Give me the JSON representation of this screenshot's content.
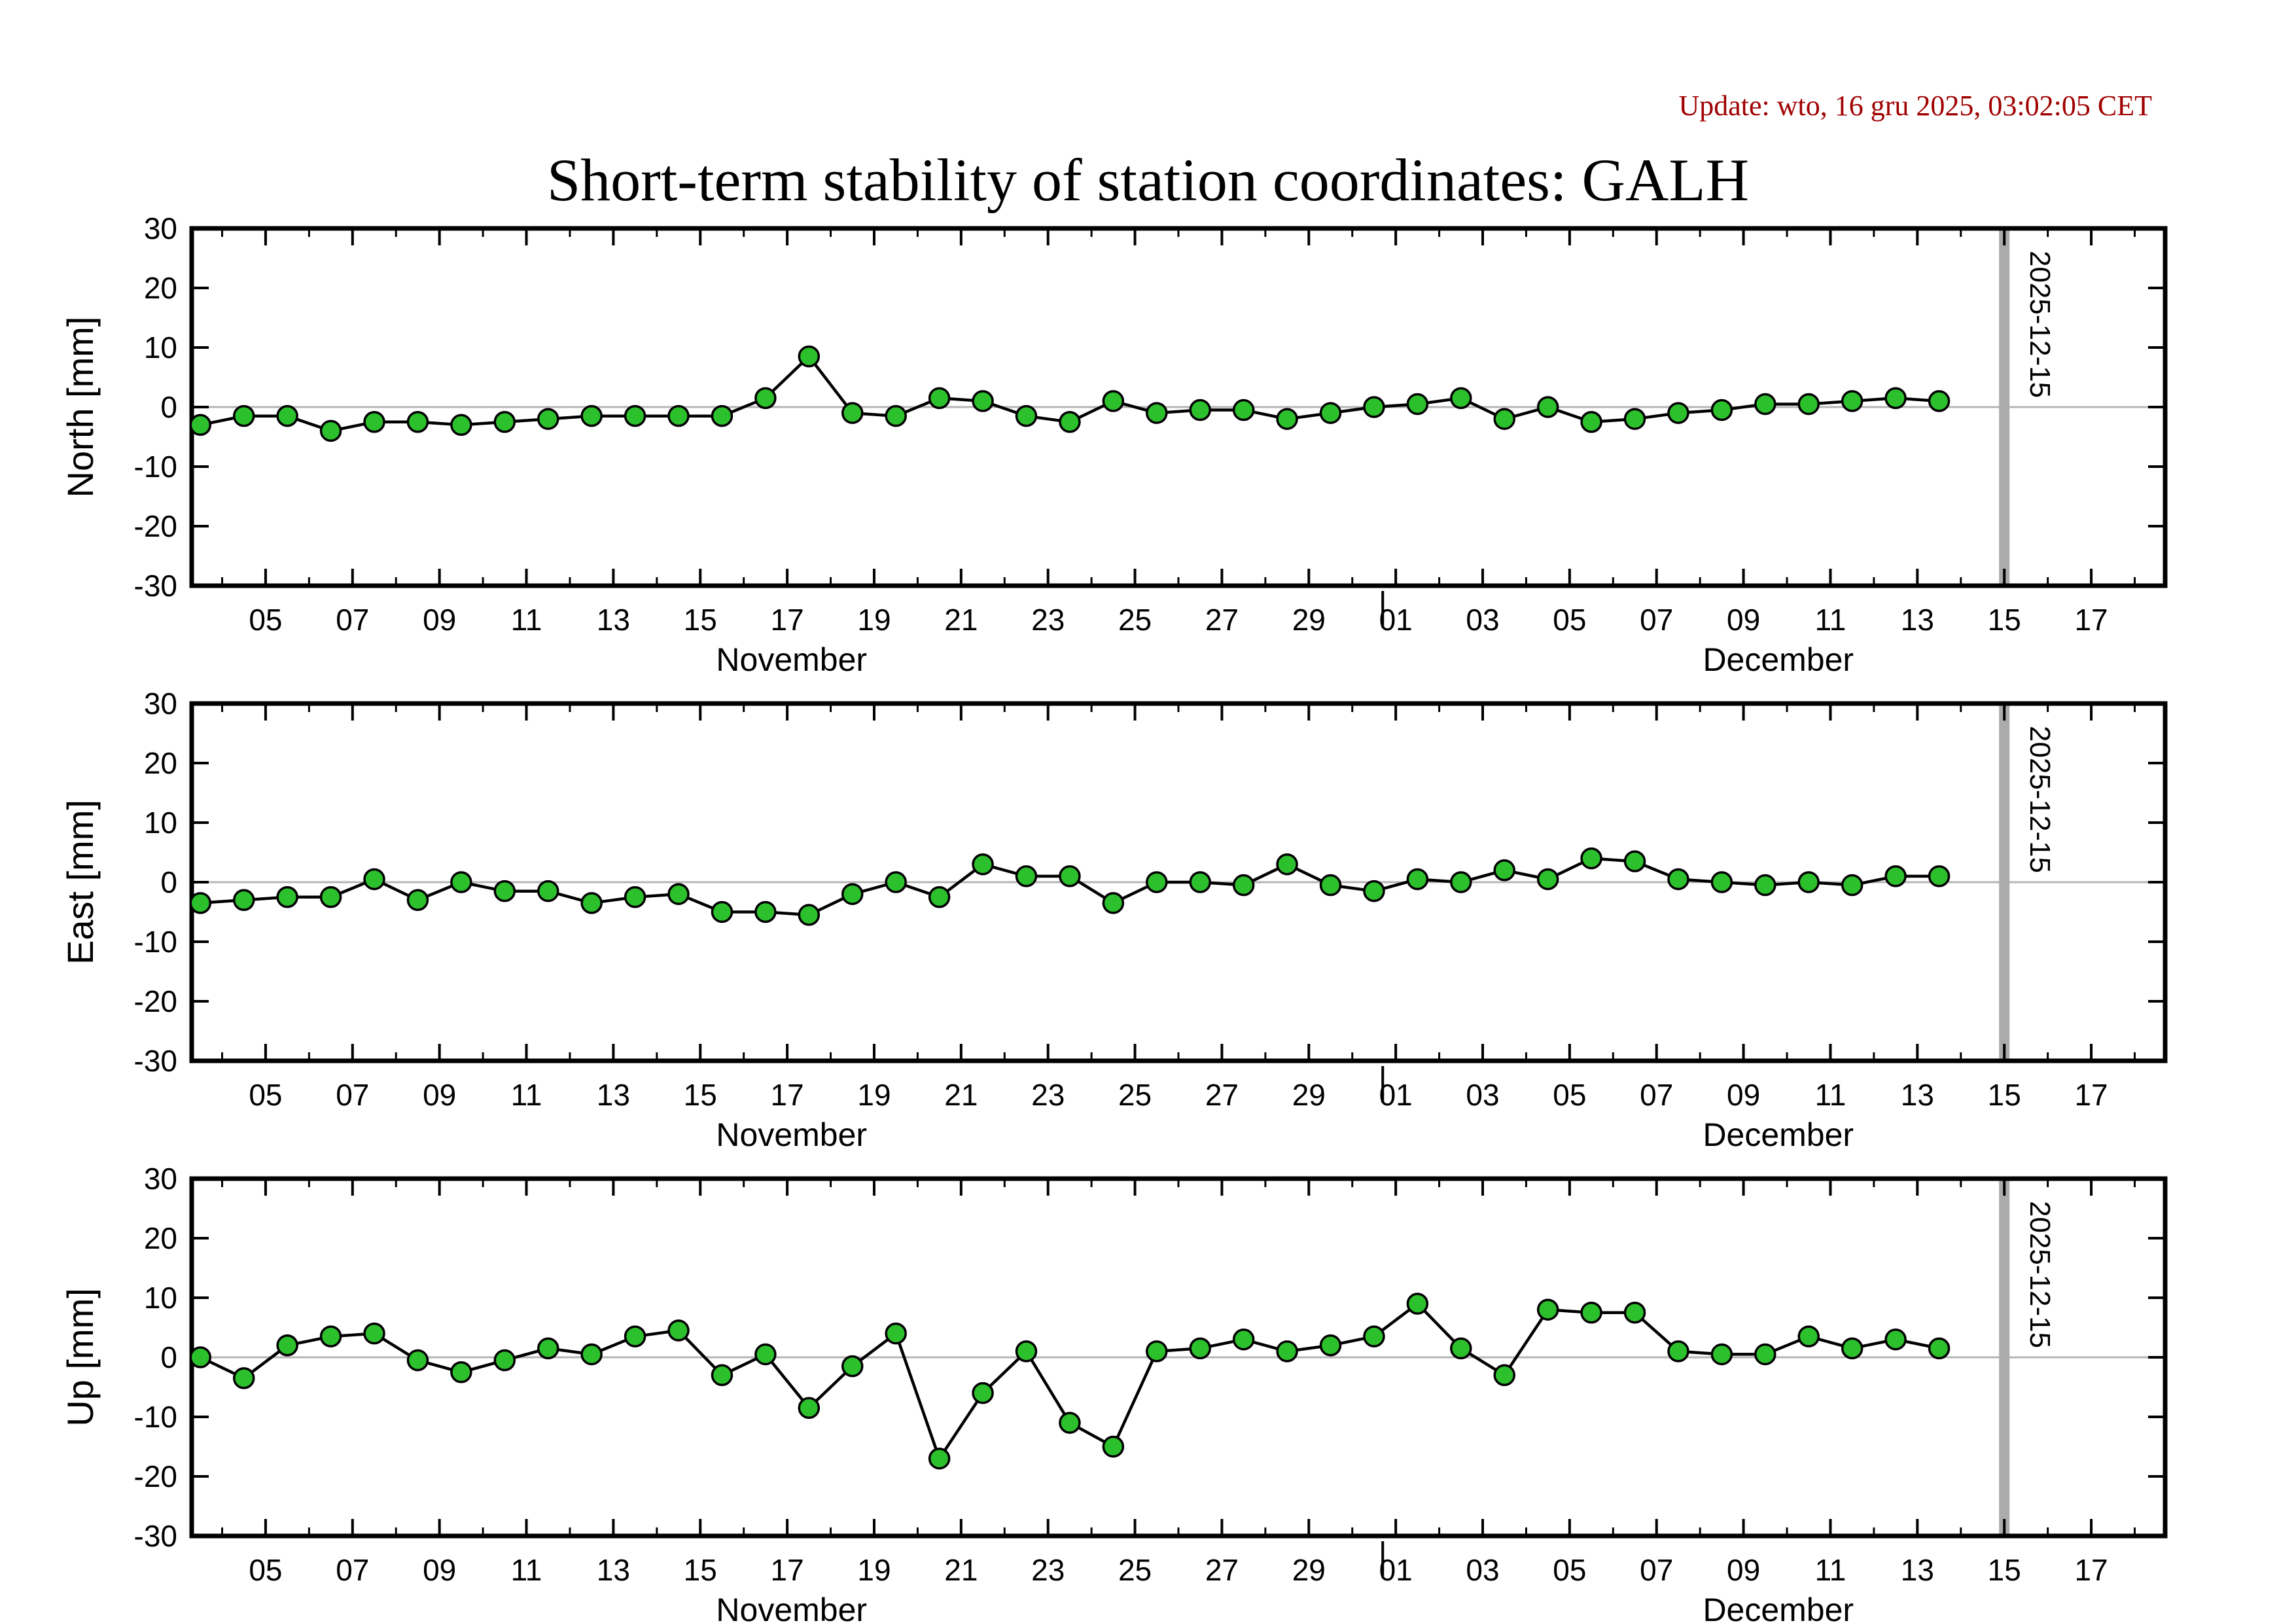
{
  "header": {
    "update_text": "Update: wto, 16 gru 2025, 03:02:05 CET",
    "update_color": "#a00000"
  },
  "chart_data": {
    "type": "line",
    "title": "Short-term stability of station coordinates: GALH",
    "xlim": [
      3.3,
      48.7
    ],
    "ylim": [
      -30,
      30
    ],
    "y_ticks": [
      -30,
      -20,
      -10,
      0,
      10,
      20,
      30
    ],
    "x_unit": "day of period (November day number, December continues at 31)",
    "x_start": 3.5,
    "x_step": 1,
    "x_ticks": {
      "days": [
        5,
        7,
        9,
        11,
        13,
        15,
        17,
        19,
        21,
        23,
        25,
        27,
        29,
        31,
        33,
        35,
        37,
        39,
        41,
        43,
        45,
        47
      ],
      "labels": [
        "05",
        "07",
        "09",
        "11",
        "13",
        "15",
        "17",
        "19",
        "21",
        "23",
        "25",
        "27",
        "29",
        "01",
        "03",
        "05",
        "07",
        "09",
        "11",
        "13",
        "15",
        "17"
      ]
    },
    "month_labels": [
      {
        "label": "November",
        "day": 17.1
      },
      {
        "label": "December",
        "day": 39.8
      }
    ],
    "month_boundary_day": 30.7,
    "event_marker": {
      "day": 45,
      "label": "2025-12-15",
      "bar_color": "#ababab"
    },
    "marker_style": {
      "fill": "#2dc02d",
      "stroke": "#000000",
      "line": "#000000",
      "zero_line": "#b5b5b5"
    },
    "series": [
      {
        "name": "North [mm]",
        "values": [
          -3,
          -1.5,
          -1.5,
          -4,
          -2.5,
          -2.5,
          -3,
          -2.5,
          -2,
          -1.5,
          -1.5,
          -1.5,
          -1.5,
          1.5,
          8.5,
          -1,
          -1.5,
          1.5,
          1,
          -1.5,
          -2.5,
          1,
          -1,
          -0.5,
          -0.5,
          -2,
          -1,
          0,
          0.5,
          1.5,
          -2,
          0,
          -2.5,
          -2,
          -1,
          -0.5,
          0.5,
          0.5,
          1,
          1.5,
          1
        ]
      },
      {
        "name": "East [mm]",
        "values": [
          -3.5,
          -3,
          -2.5,
          -2.5,
          0.5,
          -3,
          0,
          -1.5,
          -1.5,
          -3.5,
          -2.5,
          -2,
          -5,
          -5,
          -5.5,
          -2,
          0,
          -2.5,
          3,
          1,
          1,
          -3.5,
          0,
          0,
          -0.5,
          3,
          -0.5,
          -1.5,
          0.5,
          0,
          2,
          0.5,
          4,
          3.5,
          0.5,
          0,
          -0.5,
          0,
          -0.5,
          1,
          1
        ]
      },
      {
        "name": "Up [mm]",
        "values": [
          0,
          -3.5,
          2,
          3.5,
          4,
          -0.5,
          -2.5,
          -0.5,
          1.5,
          0.5,
          3.5,
          4.5,
          -3,
          0.5,
          -8.5,
          -1.5,
          4,
          -17,
          -6,
          1,
          -11,
          -15,
          1,
          1.5,
          3,
          1,
          2,
          3.5,
          9,
          1.5,
          -3,
          8,
          7.5,
          7.5,
          1,
          0.5,
          0.5,
          3.5,
          1.5,
          3,
          1.5
        ]
      }
    ]
  }
}
